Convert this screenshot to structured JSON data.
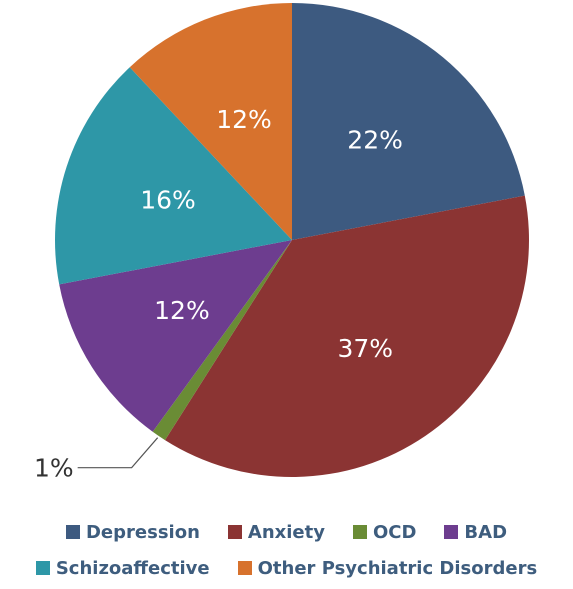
{
  "chart_data": {
    "type": "pie",
    "slices": [
      {
        "name": "Depression",
        "value": 22,
        "label": "22%",
        "color": "#3d5a80"
      },
      {
        "name": "Anxiety",
        "value": 37,
        "label": "37%",
        "color": "#8b3433"
      },
      {
        "name": "OCD",
        "value": 1,
        "label": "1%",
        "color": "#6a8c35"
      },
      {
        "name": "BAD",
        "value": 12,
        "label": "12%",
        "color": "#6d3d8f"
      },
      {
        "name": "Schizoaffective",
        "value": 16,
        "label": "16%",
        "color": "#2e97a7"
      },
      {
        "name": "Other Psychiatric Disorders",
        "value": 12,
        "label": "12%",
        "color": "#d7722d"
      }
    ],
    "legend_position": "bottom",
    "legend_rows": [
      [
        "Depression",
        "Anxiety",
        "OCD",
        "BAD"
      ],
      [
        "Schizoaffective",
        "Other Psychiatric Disorders"
      ]
    ]
  }
}
